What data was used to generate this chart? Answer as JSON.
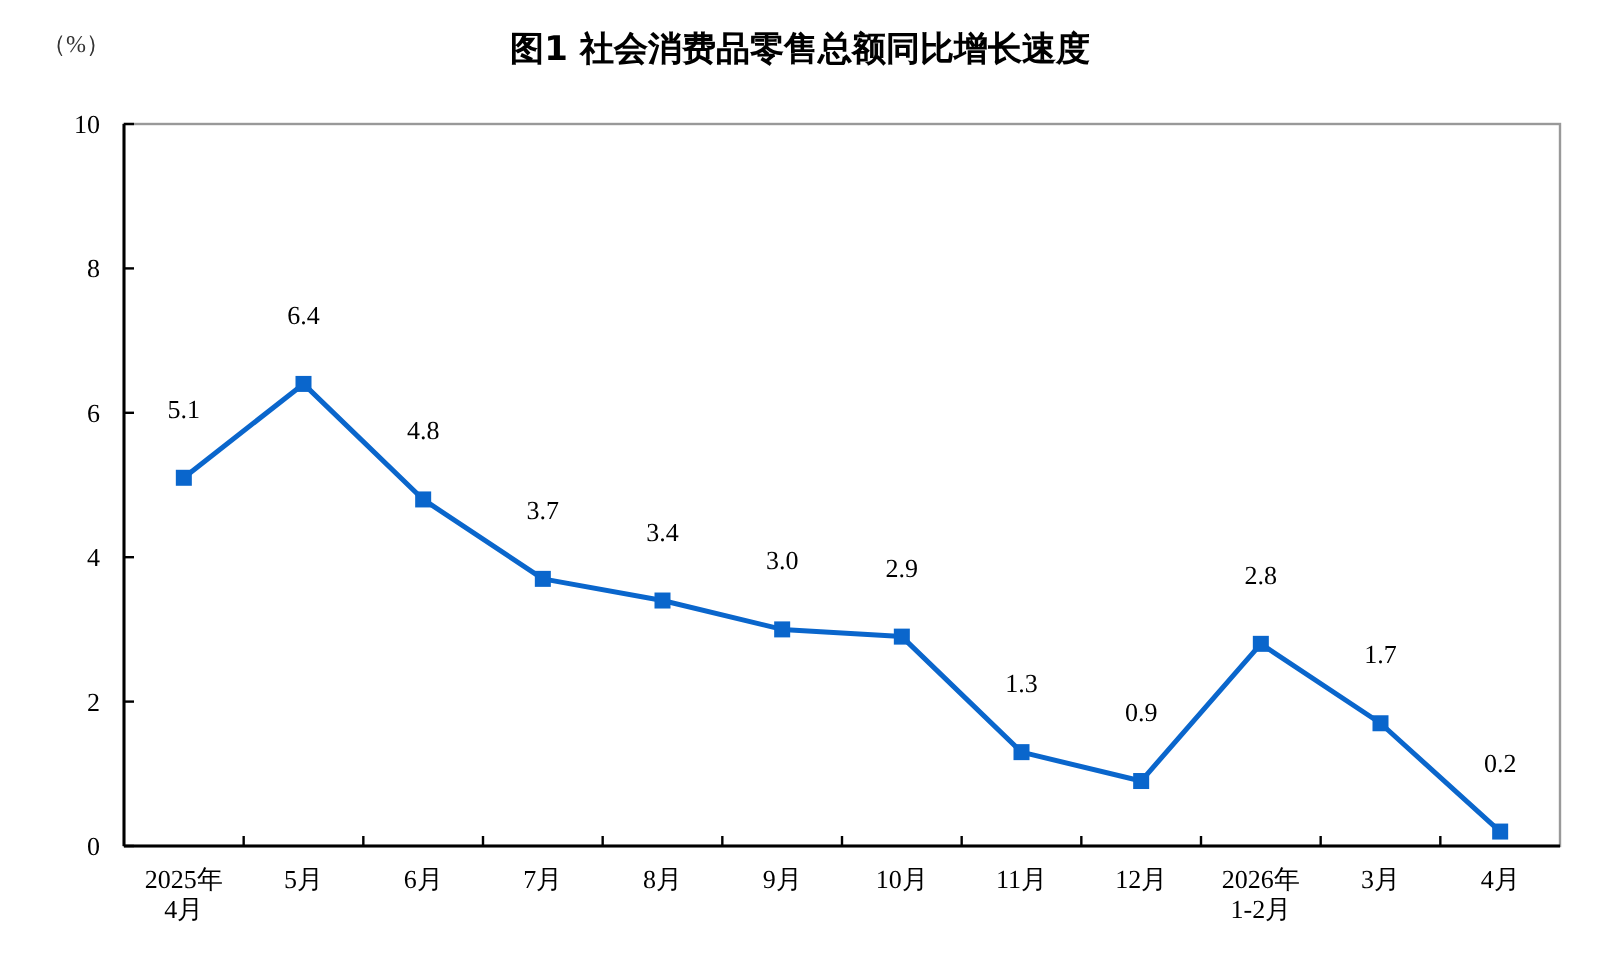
{
  "chart_data": {
    "type": "line",
    "title": "图1  社会消费品零售总额同比增长速度",
    "ylabel": "（%）",
    "categories": [
      "2025年\n4月",
      "5月",
      "6月",
      "7月",
      "8月",
      "9月",
      "10月",
      "11月",
      "12月",
      "2026年\n1-2月",
      "3月",
      "4月"
    ],
    "series": [
      {
        "color": "#0a66cc",
        "values": [
          5.1,
          6.4,
          4.8,
          3.7,
          3.4,
          3.0,
          2.9,
          1.3,
          0.9,
          2.8,
          1.7,
          0.2
        ],
        "value_labels": [
          "5.1",
          "6.4",
          "4.8",
          "3.7",
          "3.4",
          "3.0",
          "2.9",
          "1.3",
          "0.9",
          "2.8",
          "1.7",
          "0.2"
        ]
      }
    ],
    "ylim": [
      0,
      10
    ],
    "yticks": [
      0,
      2,
      4,
      6,
      8,
      10
    ],
    "grid": false,
    "marker": "square",
    "line_style": "solid"
  }
}
